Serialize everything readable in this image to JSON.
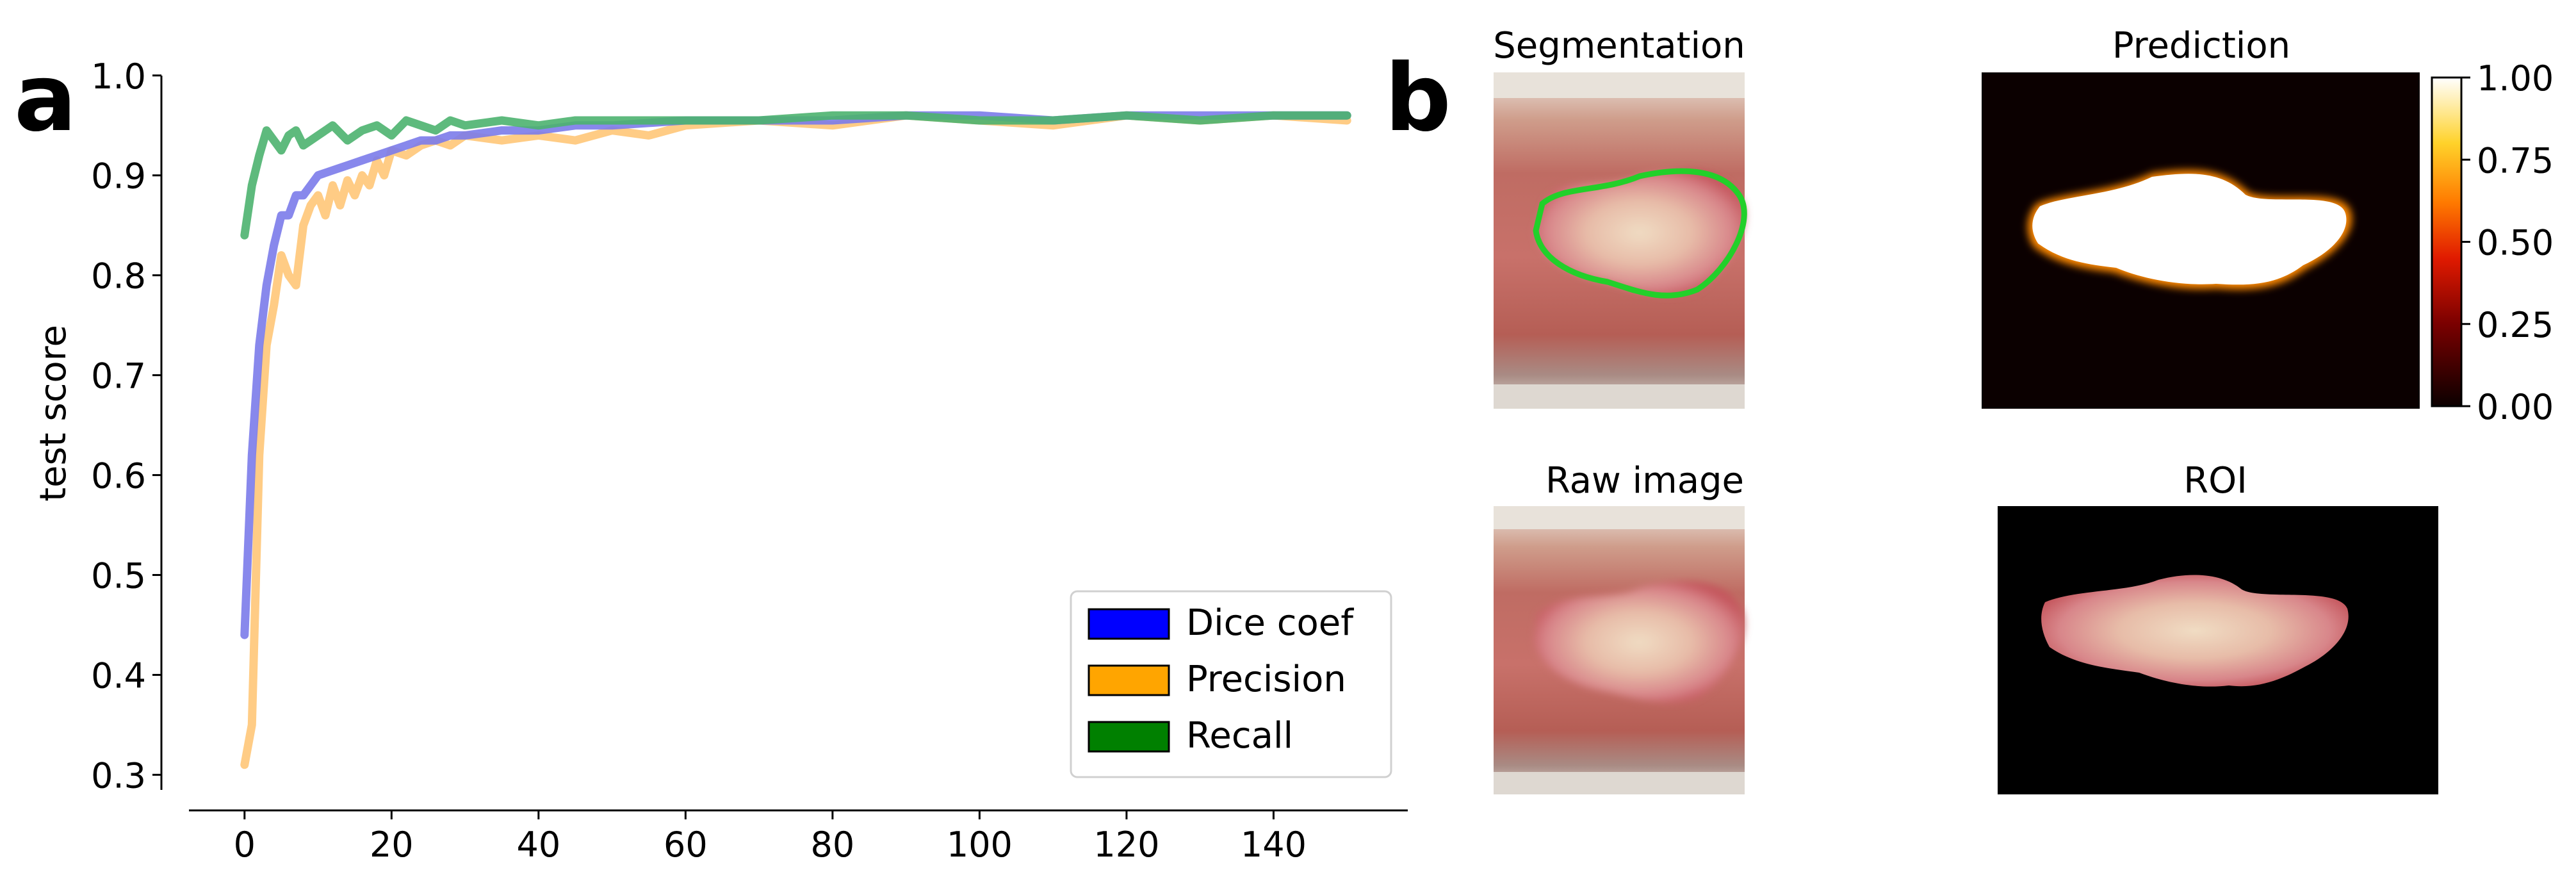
{
  "panel_labels": {
    "a": "a",
    "b": "b"
  },
  "colors": {
    "dice": "#7b7bea",
    "precision": "#ffc778",
    "recall": "#4db36f",
    "legend_dice": "#0000ff",
    "legend_precision": "#ffa500",
    "legend_recall": "#008000"
  },
  "chart_data": [
    {
      "type": "line",
      "title": "",
      "xlabel": "",
      "ylabel": "test score",
      "xlim": [
        -8,
        158
      ],
      "ylim": [
        0.29,
        1.005
      ],
      "xticks": [
        0,
        20,
        40,
        60,
        80,
        100,
        120,
        140
      ],
      "yticks": [
        0.3,
        0.4,
        0.5,
        0.6,
        0.7,
        0.8,
        0.9,
        1.0
      ],
      "xtick_labels": [
        "0",
        "20",
        "40",
        "60",
        "80",
        "100",
        "120",
        "140"
      ],
      "ytick_labels": [
        "0.3",
        "0.4",
        "0.5",
        "0.6",
        "0.7",
        "0.8",
        "0.9",
        "1.0"
      ],
      "grid": false,
      "legend_position": "lower-right",
      "series": [
        {
          "name": "Dice coef",
          "x": [
            0,
            1,
            2,
            3,
            4,
            5,
            6,
            7,
            8,
            9,
            10,
            12,
            14,
            16,
            18,
            20,
            22,
            24,
            26,
            28,
            30,
            35,
            40,
            45,
            50,
            60,
            70,
            80,
            90,
            100,
            110,
            120,
            130,
            140,
            150
          ],
          "values": [
            0.44,
            0.62,
            0.73,
            0.79,
            0.83,
            0.86,
            0.86,
            0.88,
            0.88,
            0.89,
            0.9,
            0.905,
            0.91,
            0.915,
            0.92,
            0.925,
            0.93,
            0.935,
            0.935,
            0.94,
            0.94,
            0.945,
            0.945,
            0.95,
            0.95,
            0.955,
            0.955,
            0.955,
            0.96,
            0.96,
            0.955,
            0.96,
            0.96,
            0.96,
            0.96
          ]
        },
        {
          "name": "Precision",
          "x": [
            0,
            1,
            2,
            3,
            4,
            5,
            6,
            7,
            8,
            9,
            10,
            11,
            12,
            13,
            14,
            15,
            16,
            17,
            18,
            19,
            20,
            22,
            24,
            26,
            28,
            30,
            35,
            40,
            45,
            50,
            55,
            60,
            70,
            80,
            90,
            100,
            110,
            120,
            130,
            140,
            150
          ],
          "values": [
            0.31,
            0.35,
            0.62,
            0.73,
            0.77,
            0.82,
            0.8,
            0.79,
            0.85,
            0.87,
            0.88,
            0.86,
            0.89,
            0.87,
            0.895,
            0.88,
            0.9,
            0.89,
            0.915,
            0.9,
            0.925,
            0.92,
            0.93,
            0.935,
            0.93,
            0.94,
            0.935,
            0.94,
            0.935,
            0.945,
            0.94,
            0.95,
            0.955,
            0.95,
            0.96,
            0.955,
            0.95,
            0.96,
            0.955,
            0.96,
            0.955
          ]
        },
        {
          "name": "Recall",
          "x": [
            0,
            1,
            2,
            3,
            4,
            5,
            6,
            7,
            8,
            9,
            10,
            12,
            14,
            16,
            18,
            20,
            22,
            24,
            26,
            28,
            30,
            35,
            40,
            45,
            50,
            60,
            70,
            80,
            90,
            100,
            110,
            120,
            130,
            140,
            150
          ],
          "values": [
            0.84,
            0.89,
            0.92,
            0.945,
            0.935,
            0.925,
            0.94,
            0.945,
            0.93,
            0.935,
            0.94,
            0.95,
            0.935,
            0.945,
            0.95,
            0.94,
            0.955,
            0.95,
            0.945,
            0.955,
            0.95,
            0.955,
            0.95,
            0.955,
            0.955,
            0.955,
            0.955,
            0.96,
            0.96,
            0.955,
            0.955,
            0.96,
            0.955,
            0.96,
            0.96
          ]
        }
      ]
    },
    {
      "type": "colorbar",
      "ticks": [
        0.0,
        0.25,
        0.5,
        0.75,
        1.0
      ],
      "tick_labels": [
        "0.00",
        "0.25",
        "0.50",
        "0.75",
        "1.00"
      ]
    }
  ],
  "images": {
    "segmentation": "Segmentation",
    "prediction": "Prediction",
    "raw": "Raw image",
    "roi": "ROI"
  }
}
